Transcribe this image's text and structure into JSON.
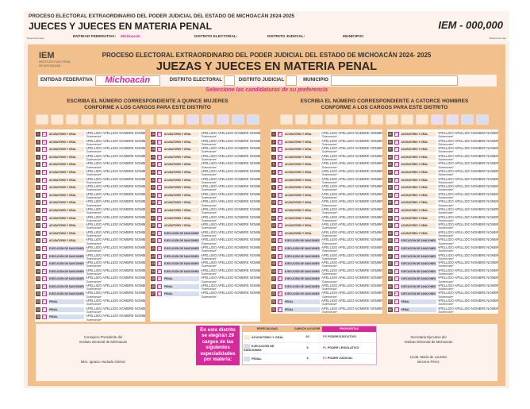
{
  "header": {
    "process": "PROCESO ELECTORAL EXTRAORDINARIO DEL PODER JUDICIAL DEL ESTADO DE MICHOACÁN 2024-2025",
    "title": "JUECES Y JUECES EN MATERIA PENAL",
    "folio": "IEM - 000,000",
    "entidad_label": "ENTIDAD FEDERATIVA:",
    "entidad_value": "Michoacán",
    "distrito_electoral": "DISTRITO ELECTORAL:",
    "distrito_judicial": "DISTRITO JUDICIAL:",
    "municipio": "MUNICIPIO:",
    "detach_left": "Desprende aquí",
    "detach_right": "Desprende aquí"
  },
  "ballot": {
    "logo": "IEM",
    "logo_sub": "INSTITUTO ELECTORAL DE MICHOACÁN",
    "process": "PROCESO ELECTORAL EXTRAORDINARIO DEL PODER JUDICIAL DEL ESTADO DE MICHOACÁN 2024- 2025",
    "title": "JUEZAS Y JUECES EN MATERIA PENAL",
    "entidad_label": "ENTIDAD FEDERATIVA",
    "entidad_value": "Michoacán",
    "distrito_electoral": "DISTRITO ELECTORAL",
    "distrito_judicial": "DISTRITO JUDICIAL",
    "municipio": "MUNICIPIO",
    "instruction": "Seleccione las candidaturas de su preferencia"
  },
  "candidate": {
    "name": "APELLIDO APELLIDO NOMBRE NOMBRE",
    "nickname": "\"Sobrenombre\"",
    "tag": "PJ"
  },
  "specialties": {
    "A": "ACUSATORIO Y ORAL",
    "E": "EJECUCIÓN DE SANCIONES",
    "P": "PENAL"
  },
  "sections": [
    {
      "heading1": "ESCRIBA EL NÚMERO CORRESPONDIENTE A QUINCE MUJERES",
      "heading2": "CONFORME A LOS CARGOS PARA ESTE DISTRITO",
      "boxes": [
        "A",
        "A",
        "A",
        "A",
        "A",
        "A",
        "A",
        "A",
        "A",
        "A",
        "E",
        "E",
        "E",
        "P",
        "P"
      ],
      "columns": [
        "AAAAAAAAAAAAAAAEEEEEEEPPP",
        "AAAAAAAAAAAAAEEEEEEPPP"
      ]
    },
    {
      "heading1": "ESCRIBA EL NÚMERO CORRESPONDIENTE A CATORCE HOMBRES",
      "heading2": "CONFORME A LOS CARGOS PARA ESTE DISTRITO",
      "boxes": [
        "A",
        "A",
        "A",
        "A",
        "A",
        "A",
        "A",
        "A",
        "A",
        "A",
        "E",
        "E",
        "P",
        "P"
      ],
      "columns": [
        "AAAAAAAAAAAAAAEEEEEEEEPP",
        "AAAAAAAAAAAAAAEEEEEEEEPP"
      ]
    }
  ],
  "signatures": {
    "left_title1": "Consejero Presidente del",
    "left_title2": "Instituto electoral de Michoacán",
    "left_name": "Mtro. Ignacio Hurtado Gómez",
    "right_title1": "Secretaria Ejecutiva del",
    "right_title2": "Instituto Electoral de Michoacán",
    "right_name1": "Licda. María de Lourdes",
    "right_name2": "Becerra Pérez"
  },
  "info_box": "En este distrito se elegirán 29 cargos de las siguientes especialidades por materia:",
  "legend": {
    "col1": "ESPECIALIDAD",
    "col2": "CARGOS A ELEGIR",
    "col3": "PROPUESTAS",
    "rows": [
      {
        "spec": "ACUSATORIO Y ORAL",
        "count": "20",
        "prop_tag": "PE",
        "prop": "PODER EJECUTIVO",
        "color": "#fbe9d6"
      },
      {
        "spec": "EJECUCIÓN DE SANCIONES",
        "count": "5",
        "prop_tag": "PL",
        "prop": "PODER LEGISLATIVO",
        "color": "#e0d8ee"
      },
      {
        "spec": "PENAL",
        "count": "4",
        "prop_tag": "PJ",
        "prop": "PODER JUDICIAL",
        "color": "#d6def0"
      }
    ]
  },
  "colors": {
    "orange": "#f2c08d",
    "pink": "#d62a9a",
    "background": "#fbeee4"
  }
}
